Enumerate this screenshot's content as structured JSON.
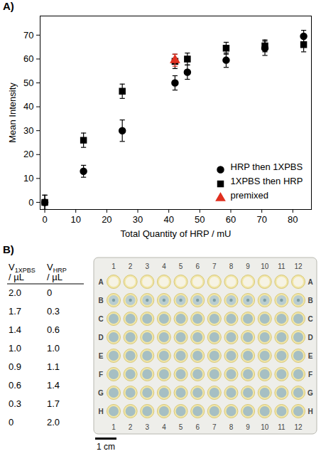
{
  "chart_data": {
    "type": "scatter",
    "panel_label": "A)",
    "x_label": "Total Quantity of HRP / mU",
    "y_label": "Mean Intensity",
    "xlim": [
      -1.5,
      86
    ],
    "xticks": [
      0,
      10,
      20,
      30,
      40,
      50,
      60,
      70,
      80
    ],
    "ylim": [
      -3,
      78
    ],
    "yticks": [
      0,
      10,
      20,
      30,
      40,
      50,
      60,
      70
    ],
    "legend": "bottom-right",
    "series": [
      {
        "name": "HRP then 1XPBS",
        "color": "#000000",
        "marker": "circle",
        "x": [
          0,
          12.5,
          25,
          42,
          46,
          58.5,
          71,
          83.5
        ],
        "values": [
          0,
          13,
          30,
          50,
          54.5,
          59.5,
          64.5,
          69.5
        ],
        "errors": [
          3,
          2.5,
          4.5,
          3,
          3,
          3,
          3,
          2.5
        ]
      },
      {
        "name": "1XPBS then HRP",
        "color": "#000000",
        "marker": "square",
        "x": [
          0,
          12.5,
          25,
          42,
          46,
          58.5,
          71,
          83.5
        ],
        "values": [
          0,
          26,
          46.5,
          59,
          60,
          64.5,
          65.5,
          66
        ],
        "errors": [
          3,
          3,
          3,
          3,
          2.5,
          2.5,
          2.5,
          3
        ]
      },
      {
        "name": "premixed",
        "color": "#e03020",
        "marker": "triangle",
        "x": [
          42
        ],
        "values": [
          59.5
        ],
        "errors": [
          2.5
        ]
      }
    ]
  },
  "panel_b": {
    "label": "B)",
    "table": {
      "columns": [
        {
          "symbol": "V",
          "subscript": "1XPBS",
          "unit": "/ µL"
        },
        {
          "symbol": "V",
          "subscript": "HRP",
          "unit": "/ µL"
        }
      ],
      "rows": [
        [
          "2.0",
          "0"
        ],
        [
          "1.7",
          "0.3"
        ],
        [
          "1.4",
          "0.6"
        ],
        [
          "1.0",
          "1.0"
        ],
        [
          "0.9",
          "1.1"
        ],
        [
          "0.6",
          "1.4"
        ],
        [
          "0.3",
          "1.7"
        ],
        [
          "0",
          "2.0"
        ]
      ]
    },
    "plate": {
      "columns": [
        "1",
        "2",
        "3",
        "4",
        "5",
        "6",
        "7",
        "8",
        "9",
        "10",
        "11",
        "12"
      ],
      "rows": [
        "A",
        "B",
        "C",
        "D",
        "E",
        "F",
        "G",
        "H"
      ]
    },
    "scale_bar": "1 cm"
  }
}
